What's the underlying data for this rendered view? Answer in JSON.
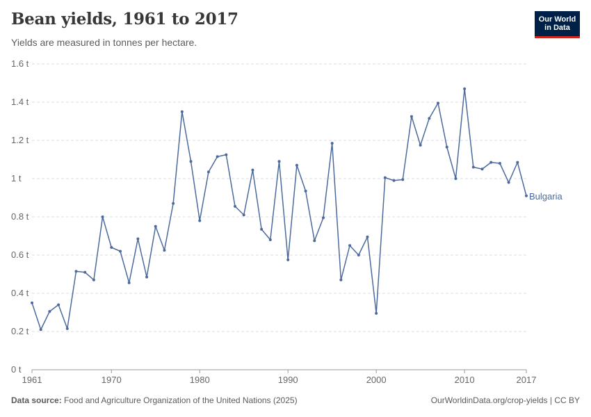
{
  "header": {
    "title": "Bean yields, 1961 to 2017",
    "subtitle": "Yields are measured in tonnes per hectare."
  },
  "logo": {
    "line1": "Our World",
    "line2": "in Data"
  },
  "footer": {
    "source_label": "Data source:",
    "source_text": "Food and Agriculture Organization of the United Nations (2025)",
    "right_text": "OurWorldinData.org/crop-yields | CC BY"
  },
  "colors": {
    "series": "#4c6a9c",
    "grid": "#dddddd",
    "axis": "#999999"
  },
  "chart_data": {
    "type": "line",
    "title": "Bean yields, 1961 to 2017",
    "subtitle": "Yields are measured in tonnes per hectare.",
    "ylim": [
      0,
      1.6
    ],
    "y_ticks": [
      0,
      0.2,
      0.4,
      0.6,
      0.8,
      1,
      1.2,
      1.4,
      1.6
    ],
    "y_tick_labels": [
      "0 t",
      "0.2 t",
      "0.4 t",
      "0.6 t",
      "0.8 t",
      "1 t",
      "1.2 t",
      "1.4 t",
      "1.6 t"
    ],
    "xlim": [
      1961,
      2017
    ],
    "x_ticks": [
      1961,
      1970,
      1980,
      1990,
      2000,
      2010,
      2017
    ],
    "x_tick_labels": [
      "1961",
      "1970",
      "1980",
      "1990",
      "2000",
      "2010",
      "2017"
    ],
    "grid": "horizontal dashed",
    "series": [
      {
        "name": "Bulgaria",
        "x": [
          1961,
          1962,
          1963,
          1964,
          1965,
          1966,
          1967,
          1968,
          1969,
          1970,
          1971,
          1972,
          1973,
          1974,
          1975,
          1976,
          1977,
          1978,
          1979,
          1980,
          1981,
          1982,
          1983,
          1984,
          1985,
          1986,
          1987,
          1988,
          1989,
          1990,
          1991,
          1992,
          1993,
          1994,
          1995,
          1996,
          1997,
          1998,
          1999,
          2000,
          2001,
          2002,
          2003,
          2004,
          2005,
          2006,
          2007,
          2008,
          2009,
          2010,
          2011,
          2012,
          2013,
          2014,
          2015,
          2016,
          2017
        ],
        "values": [
          0.35,
          0.21,
          0.305,
          0.34,
          0.215,
          0.515,
          0.51,
          0.47,
          0.8,
          0.64,
          0.62,
          0.455,
          0.685,
          0.485,
          0.75,
          0.625,
          0.87,
          1.35,
          1.09,
          0.78,
          1.035,
          1.115,
          1.125,
          0.855,
          0.81,
          1.045,
          0.735,
          0.68,
          1.09,
          0.575,
          1.07,
          0.935,
          0.675,
          0.795,
          1.185,
          0.47,
          0.65,
          0.6,
          0.695,
          0.295,
          1.005,
          0.99,
          0.995,
          1.325,
          1.175,
          1.315,
          1.395,
          1.165,
          1.0,
          1.47,
          1.06,
          1.05,
          1.085,
          1.08,
          0.98,
          1.085,
          0.91
        ]
      }
    ]
  }
}
